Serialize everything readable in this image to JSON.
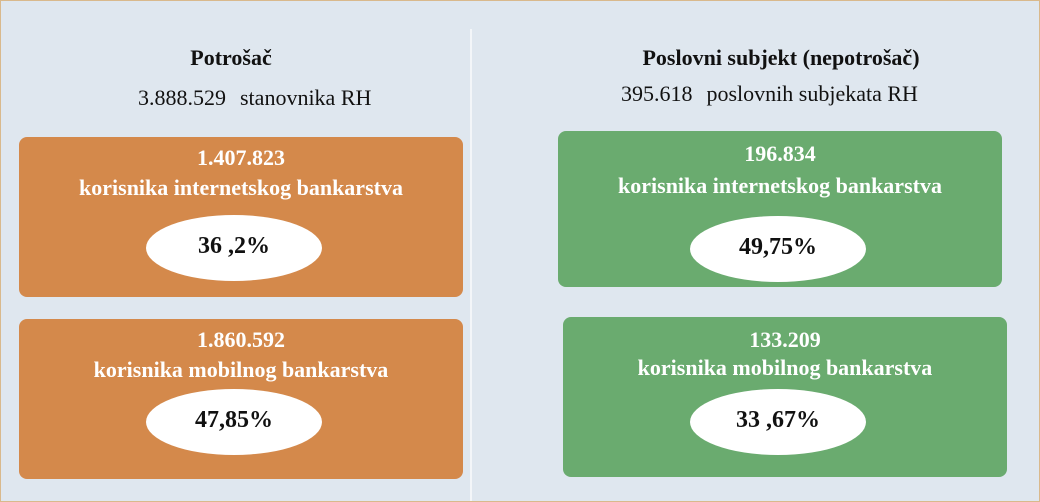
{
  "panels": [
    {
      "title": "Potrošač",
      "population": {
        "number": "3.888.529",
        "label": "stanovnika RH"
      },
      "boxes": [
        {
          "number": "1.407.823",
          "label": "korisnika internetskog bankarstva",
          "share": "36 ,2%"
        },
        {
          "number": "1.860.592",
          "label": "korisnika mobilnog bankarstva",
          "share": "47,85%"
        }
      ]
    },
    {
      "title": "Poslovni subjekt (nepotrošač)",
      "population": {
        "number": "395.618",
        "label": "poslovnih subjekata RH"
      },
      "boxes": [
        {
          "number": "196.834",
          "label": "korisnika internetskog bankarstva",
          "share": "49,75%"
        },
        {
          "number": "133.209",
          "label": "korisnika mobilnog bankarstva",
          "share": "33 ,67%"
        }
      ]
    }
  ]
}
